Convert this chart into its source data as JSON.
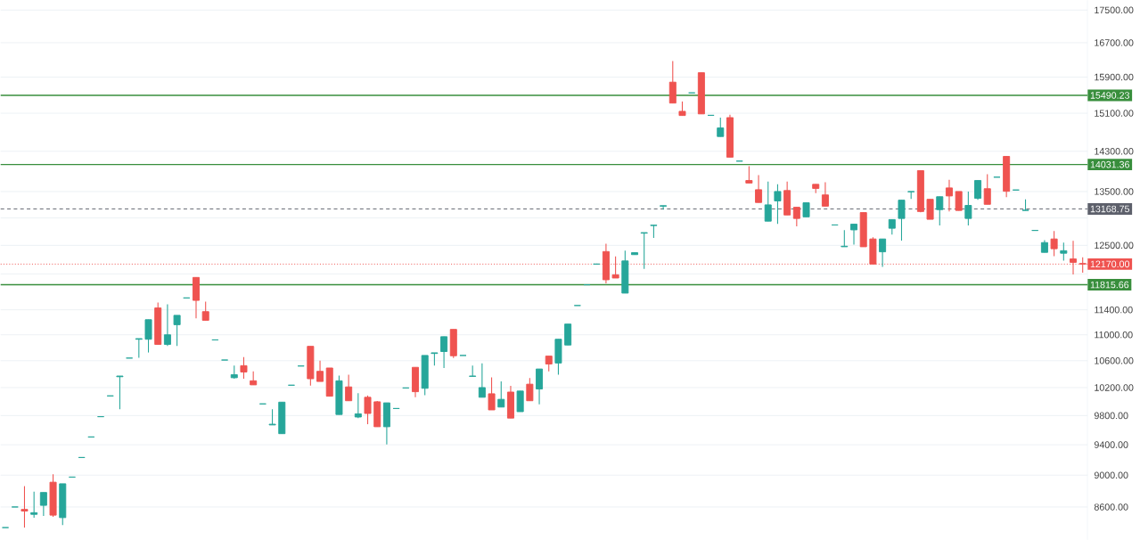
{
  "chart_data": {
    "type": "candlestick",
    "categories": [
      null,
      null,
      null,
      null,
      null,
      null,
      null,
      null,
      null,
      null,
      null,
      null,
      null,
      null,
      null,
      null,
      null,
      null,
      null,
      null,
      null,
      null,
      null,
      null,
      null,
      null,
      null,
      null,
      null,
      null,
      null,
      null,
      null,
      null,
      null,
      null,
      null,
      null,
      null,
      null,
      null,
      null,
      null,
      null,
      null,
      null,
      null,
      null,
      null,
      null,
      null,
      null,
      null,
      null,
      null,
      null,
      null,
      null,
      null,
      null,
      null,
      null,
      null,
      null,
      null,
      null,
      null,
      null,
      null,
      null,
      null,
      null,
      null,
      null,
      null,
      null,
      null,
      null,
      null,
      null,
      null,
      null,
      null,
      null,
      null,
      null,
      null,
      null,
      null,
      null,
      null,
      null,
      null,
      null,
      null,
      null,
      null,
      null,
      null,
      null,
      null,
      null,
      null,
      null,
      null,
      null,
      null,
      null,
      null,
      null,
      null,
      null,
      null,
      null
    ],
    "ohlc": [
      [
        8350,
        8350,
        8350,
        8350
      ],
      [
        8600,
        8600,
        8600,
        8600
      ],
      [
        8570,
        8860,
        8350,
        8550
      ],
      [
        8510,
        8790,
        8470,
        8530
      ],
      [
        8620,
        8780,
        8490,
        8780
      ],
      [
        8910,
        9010,
        8480,
        8500
      ],
      [
        8470,
        8890,
        8380,
        8890
      ],
      [
        8975,
        8975,
        8975,
        8975
      ],
      [
        9230,
        9230,
        9230,
        9230
      ],
      [
        9505,
        9505,
        9505,
        9505
      ],
      [
        9785,
        9785,
        9785,
        9785
      ],
      [
        10080,
        10080,
        10080,
        10080
      ],
      [
        10360,
        10370,
        9890,
        10370
      ],
      [
        10640,
        10640,
        10640,
        10640
      ],
      [
        10930,
        10940,
        10645,
        10940
      ],
      [
        10930,
        11240,
        10725,
        11240
      ],
      [
        11430,
        11520,
        10850,
        10850
      ],
      [
        10850,
        11490,
        10825,
        11000
      ],
      [
        11160,
        11310,
        10825,
        11310
      ],
      [
        11595,
        11595,
        11595,
        11595
      ],
      [
        11940,
        11940,
        11260,
        11555
      ],
      [
        11370,
        11535,
        11230,
        11230
      ],
      [
        10920,
        10920,
        10920,
        10920
      ],
      [
        10610,
        10610,
        10610,
        10610
      ],
      [
        10345,
        10525,
        10330,
        10390
      ],
      [
        10525,
        10655,
        10330,
        10430
      ],
      [
        10300,
        10440,
        10240,
        10240
      ],
      [
        9965,
        9965,
        9965,
        9965
      ],
      [
        9670,
        9890,
        9670,
        9680
      ],
      [
        9550,
        9990,
        9550,
        9990
      ],
      [
        10235,
        10235,
        10235,
        10235
      ],
      [
        10520,
        10520,
        10520,
        10520
      ],
      [
        10820,
        10820,
        10230,
        10330
      ],
      [
        10440,
        10600,
        10290,
        10290
      ],
      [
        10490,
        10490,
        10075,
        10075
      ],
      [
        9815,
        10375,
        9815,
        10300
      ],
      [
        10210,
        10390,
        10010,
        10010
      ],
      [
        9780,
        10120,
        9765,
        9825
      ],
      [
        10060,
        10085,
        9680,
        9830
      ],
      [
        9995,
        10005,
        9645,
        9645
      ],
      [
        9645,
        9980,
        9405,
        9980
      ],
      [
        9900,
        9900,
        9900,
        9900
      ],
      [
        10195,
        10195,
        10195,
        10195
      ],
      [
        10500,
        10500,
        10060,
        10140
      ],
      [
        10190,
        10680,
        10090,
        10680
      ],
      [
        10710,
        10720,
        10525,
        10720
      ],
      [
        10740,
        10970,
        10490,
        10970
      ],
      [
        11085,
        11085,
        10640,
        10675
      ],
      [
        10680,
        10680,
        10680,
        10680
      ],
      [
        10365,
        10525,
        10365,
        10370
      ],
      [
        10060,
        10560,
        10060,
        10200
      ],
      [
        10110,
        10350,
        9880,
        9880
      ],
      [
        9920,
        10290,
        9920,
        10030
      ],
      [
        10135,
        10225,
        9765,
        9765
      ],
      [
        9855,
        10150,
        9855,
        10150
      ],
      [
        10250,
        10340,
        10010,
        10010
      ],
      [
        10180,
        10475,
        9960,
        10475
      ],
      [
        10670,
        10670,
        10440,
        10550
      ],
      [
        10565,
        10930,
        10390,
        10930
      ],
      [
        10840,
        11170,
        10840,
        11170
      ],
      [
        11470,
        11470,
        11470,
        11470
      ],
      [
        11815,
        11815,
        11815,
        11815
      ],
      [
        12170,
        12170,
        12170,
        12170
      ],
      [
        12390,
        12530,
        11840,
        11900
      ],
      [
        11985,
        12305,
        11930,
        11930
      ],
      [
        11675,
        12405,
        11675,
        12225
      ],
      [
        12335,
        12370,
        12335,
        12370
      ],
      [
        12720,
        12730,
        12085,
        12730
      ],
      [
        12860,
        12865,
        12635,
        12865
      ],
      [
        13220,
        13230,
        13155,
        13230
      ],
      [
        15785,
        16270,
        15320,
        15320
      ],
      [
        15140,
        15355,
        15050,
        15050
      ],
      [
        15545,
        15545,
        15545,
        15545
      ],
      [
        16000,
        16000,
        15085,
        15085
      ],
      [
        15055,
        15055,
        15055,
        15055
      ],
      [
        14605,
        15005,
        14605,
        14785
      ],
      [
        15005,
        15065,
        14180,
        14180
      ],
      [
        14100,
        14100,
        14100,
        14100
      ],
      [
        13715,
        14000,
        13665,
        13665
      ],
      [
        13535,
        13820,
        13290,
        13290
      ],
      [
        12940,
        13695,
        12940,
        13245
      ],
      [
        13320,
        13640,
        12890,
        13500
      ],
      [
        13520,
        13695,
        13055,
        13055
      ],
      [
        13200,
        13200,
        12845,
        12990
      ],
      [
        13020,
        13285,
        13020,
        13285
      ],
      [
        13640,
        13640,
        13470,
        13560
      ],
      [
        13435,
        13680,
        13220,
        13220
      ],
      [
        12870,
        12870,
        12870,
        12870
      ],
      [
        12475,
        12775,
        12475,
        12485
      ],
      [
        12780,
        12885,
        12515,
        12885
      ],
      [
        13100,
        13100,
        12475,
        12475
      ],
      [
        12615,
        12645,
        12170,
        12170
      ],
      [
        12385,
        12615,
        12120,
        12615
      ],
      [
        12810,
        12970,
        12695,
        12970
      ],
      [
        12990,
        13335,
        12585,
        13335
      ],
      [
        13495,
        13500,
        13360,
        13500
      ],
      [
        13910,
        13910,
        13105,
        13120
      ],
      [
        13350,
        13350,
        12975,
        12975
      ],
      [
        13155,
        13400,
        12860,
        13400
      ],
      [
        13570,
        13730,
        13120,
        13415
      ],
      [
        13500,
        13500,
        13140,
        13140
      ],
      [
        12990,
        13500,
        12860,
        13235
      ],
      [
        13370,
        13715,
        13340,
        13715
      ],
      [
        13555,
        13840,
        13255,
        13255
      ],
      [
        13780,
        13780,
        13780,
        13780
      ],
      [
        14195,
        14195,
        13390,
        13505
      ],
      [
        13530,
        13530,
        13530,
        13530
      ],
      [
        13140,
        13350,
        13140,
        13145
      ],
      [
        12770,
        12770,
        12770,
        12770
      ],
      [
        12375,
        12595,
        12375,
        12550
      ],
      [
        12615,
        12760,
        12310,
        12440
      ],
      [
        12360,
        12550,
        12230,
        12405
      ],
      [
        12260,
        12580,
        11990,
        12200
      ],
      [
        12180,
        12290,
        12020,
        12170
      ]
    ],
    "colors": [
      "#26a69a",
      "#26a69a",
      "#ef5350",
      "#26a69a",
      "#26a69a",
      "#ef5350",
      "#26a69a",
      "#26a69a",
      "#26a69a",
      "#26a69a",
      "#26a69a",
      "#26a69a",
      "#26a69a",
      "#26a69a",
      "#26a69a",
      "#26a69a",
      "#ef5350",
      "#26a69a",
      "#26a69a",
      "#26a69a",
      "#ef5350",
      "#ef5350",
      "#26a69a",
      "#26a69a",
      "#26a69a",
      "#ef5350",
      "#ef5350",
      "#26a69a",
      "#26a69a",
      "#26a69a",
      "#26a69a",
      "#26a69a",
      "#ef5350",
      "#ef5350",
      "#ef5350",
      "#26a69a",
      "#ef5350",
      "#26a69a",
      "#ef5350",
      "#ef5350",
      "#26a69a",
      "#26a69a",
      "#26a69a",
      "#ef5350",
      "#26a69a",
      "#26a69a",
      "#26a69a",
      "#ef5350",
      "#26a69a",
      "#26a69a",
      "#26a69a",
      "#ef5350",
      "#26a69a",
      "#ef5350",
      "#26a69a",
      "#ef5350",
      "#26a69a",
      "#ef5350",
      "#26a69a",
      "#26a69a",
      "#26a69a",
      "#26a69a",
      "#26a69a",
      "#ef5350",
      "#ef5350",
      "#26a69a",
      "#26a69a",
      "#26a69a",
      "#26a69a",
      "#26a69a",
      "#ef5350",
      "#ef5350",
      "#26a69a",
      "#ef5350",
      "#26a69a",
      "#26a69a",
      "#ef5350",
      "#26a69a",
      "#ef5350",
      "#ef5350",
      "#26a69a",
      "#26a69a",
      "#ef5350",
      "#ef5350",
      "#26a69a",
      "#ef5350",
      "#ef5350",
      "#26a69a",
      "#26a69a",
      "#26a69a",
      "#ef5350",
      "#ef5350",
      "#26a69a",
      "#26a69a",
      "#26a69a",
      "#26a69a",
      "#ef5350",
      "#ef5350",
      "#26a69a",
      "#ef5350",
      "#ef5350",
      "#26a69a",
      "#26a69a",
      "#ef5350",
      "#26a69a",
      "#ef5350",
      "#26a69a",
      "#26a69a",
      "#26a69a",
      "#26a69a",
      "#ef5350",
      "#26a69a",
      "#ef5350",
      "#ef5350"
    ],
    "log": true,
    "ylim": [
      8205,
      17750
    ],
    "yticks": [
      {
        "value": 8600,
        "label": "8600.00"
      },
      {
        "value": 9000,
        "label": "9000.00"
      },
      {
        "value": 9400,
        "label": "9400.00"
      },
      {
        "value": 9800,
        "label": "9800.00"
      },
      {
        "value": 10200,
        "label": "10200.00"
      },
      {
        "value": 10600,
        "label": "10600.00"
      },
      {
        "value": 11000,
        "label": "11000.00"
      },
      {
        "value": 11400,
        "label": "11400.00"
      },
      {
        "value": 12000,
        "label": null
      },
      {
        "value": 12500,
        "label": "12500.00"
      },
      {
        "value": 13000,
        "label": null
      },
      {
        "value": 13500,
        "label": "13500.00"
      },
      {
        "value": 14300,
        "label": "14300.00"
      },
      {
        "value": 15100,
        "label": "15100.00"
      },
      {
        "value": 15900,
        "label": "15900.00"
      },
      {
        "value": 16700,
        "label": "16700.00"
      },
      {
        "value": 17500,
        "label": "17500.00"
      }
    ],
    "grid": "y",
    "tick_labels": "y",
    "ref_lines": [
      {
        "axis": "y",
        "value": 15490.23,
        "label": "15490.23",
        "color": "#388e3c",
        "line_style": "solid"
      },
      {
        "axis": "y",
        "value": 14031.36,
        "label": "14031.36",
        "color": "#388e3c",
        "line_style": "solid"
      },
      {
        "axis": "y",
        "value": 13168.75,
        "label": "13168.75",
        "color": "#5d606b",
        "line_style": "dashed"
      },
      {
        "axis": "y",
        "value": 12170,
        "label": "12170.00",
        "color": "#ef5350",
        "line_style": "dotted"
      },
      {
        "axis": "y",
        "value": 11815.66,
        "label": "11815.66",
        "color": "#388e3c",
        "line_style": "solid"
      }
    ]
  }
}
